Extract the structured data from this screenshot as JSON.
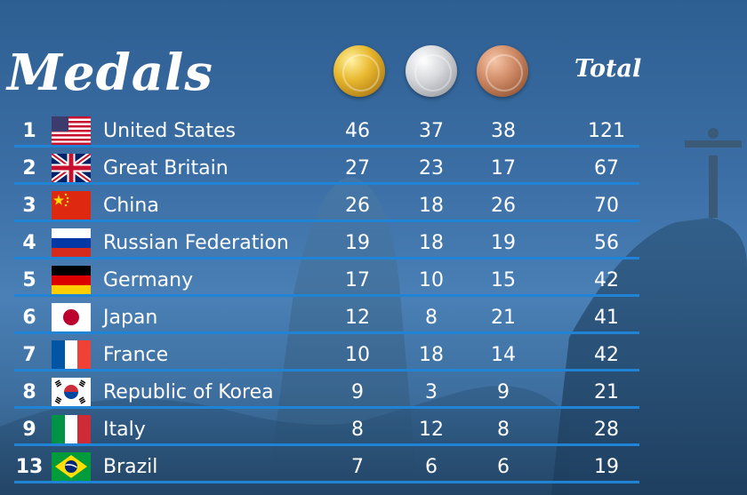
{
  "title": "Medals",
  "columns": {
    "total": "Total"
  },
  "rows": [
    {
      "rank": "1",
      "country": "United States",
      "gold": "46",
      "silver": "37",
      "bronze": "38",
      "total": "121",
      "flag": "us-flag-icon"
    },
    {
      "rank": "2",
      "country": "Great Britain",
      "gold": "27",
      "silver": "23",
      "bronze": "17",
      "total": "67",
      "flag": "gb-flag-icon"
    },
    {
      "rank": "3",
      "country": "China",
      "gold": "26",
      "silver": "18",
      "bronze": "26",
      "total": "70",
      "flag": "cn-flag-icon"
    },
    {
      "rank": "4",
      "country": "Russian Federation",
      "gold": "19",
      "silver": "18",
      "bronze": "19",
      "total": "56",
      "flag": "ru-flag-icon"
    },
    {
      "rank": "5",
      "country": "Germany",
      "gold": "17",
      "silver": "10",
      "bronze": "15",
      "total": "42",
      "flag": "de-flag-icon"
    },
    {
      "rank": "6",
      "country": "Japan",
      "gold": "12",
      "silver": "8",
      "bronze": "21",
      "total": "41",
      "flag": "jp-flag-icon"
    },
    {
      "rank": "7",
      "country": "France",
      "gold": "10",
      "silver": "18",
      "bronze": "14",
      "total": "42",
      "flag": "fr-flag-icon"
    },
    {
      "rank": "8",
      "country": "Republic of Korea",
      "gold": "9",
      "silver": "3",
      "bronze": "9",
      "total": "21",
      "flag": "kr-flag-icon"
    },
    {
      "rank": "9",
      "country": "Italy",
      "gold": "8",
      "silver": "12",
      "bronze": "8",
      "total": "28",
      "flag": "it-flag-icon"
    },
    {
      "rank": "13",
      "country": "Brazil",
      "gold": "7",
      "silver": "6",
      "bronze": "6",
      "total": "19",
      "flag": "br-flag-icon"
    }
  ],
  "colors": {
    "row_line": "#1f84d6",
    "background": "#3b6ea4"
  }
}
